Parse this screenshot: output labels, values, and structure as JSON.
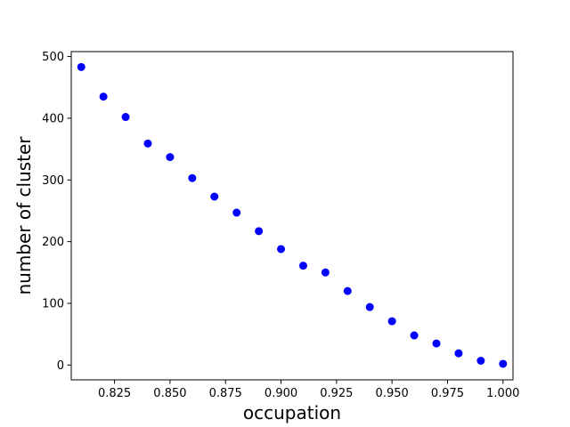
{
  "chart_data": {
    "type": "scatter",
    "title": "",
    "xlabel": "occupation",
    "ylabel": "number of cluster",
    "xlim": [
      0.8055,
      1.0045
    ],
    "ylim": [
      -24,
      508
    ],
    "grid": false,
    "legend": "none",
    "marker_color": "#0000ff",
    "x_ticks": [
      0.825,
      0.85,
      0.875,
      0.9,
      0.925,
      0.95,
      0.975,
      1.0
    ],
    "x_tick_labels": [
      "0.825",
      "0.850",
      "0.875",
      "0.900",
      "0.925",
      "0.950",
      "0.975",
      "1.000"
    ],
    "y_ticks": [
      0,
      100,
      200,
      300,
      400,
      500
    ],
    "y_tick_labels": [
      "0",
      "100",
      "200",
      "300",
      "400",
      "500"
    ],
    "series": [
      {
        "x": [
          0.81,
          0.82,
          0.83,
          0.84,
          0.85,
          0.86,
          0.87,
          0.88,
          0.89,
          0.9,
          0.91,
          0.92,
          0.93,
          0.94,
          0.95,
          0.96,
          0.97,
          0.98,
          0.99,
          1.0
        ],
        "y": [
          483,
          435,
          402,
          359,
          337,
          303,
          273,
          247,
          217,
          188,
          161,
          150,
          120,
          94,
          71,
          48,
          35,
          19,
          7,
          2
        ]
      }
    ]
  }
}
